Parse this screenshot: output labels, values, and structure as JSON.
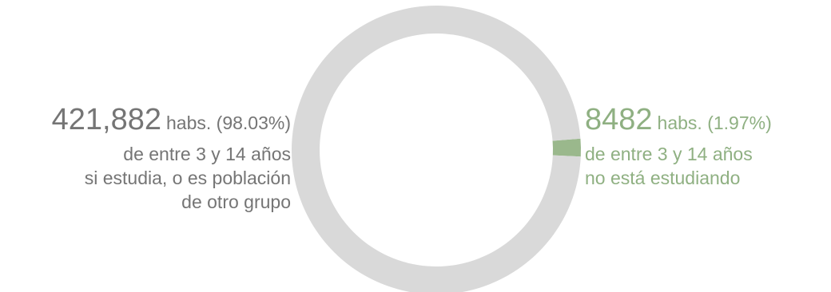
{
  "chart_data": {
    "type": "pie",
    "style": "donut",
    "slices": [
      {
        "value_label": "421,882",
        "value": 421882,
        "percent": 98.03,
        "unit_text": "habs. (98.03%)",
        "description": [
          "de entre 3 y 14 años",
          "si estudia, o es población",
          "de otro grupo"
        ],
        "color": "#d9d9d9"
      },
      {
        "value_label": "8482",
        "value": 8482,
        "percent": 1.97,
        "unit_text": "habs. (1.97%)",
        "description": [
          "de entre 3 y 14 años",
          "no está estudiando"
        ],
        "color": "#9ab88c"
      }
    ],
    "label_colors": {
      "left": "#757575",
      "right": "#8fb082"
    }
  }
}
